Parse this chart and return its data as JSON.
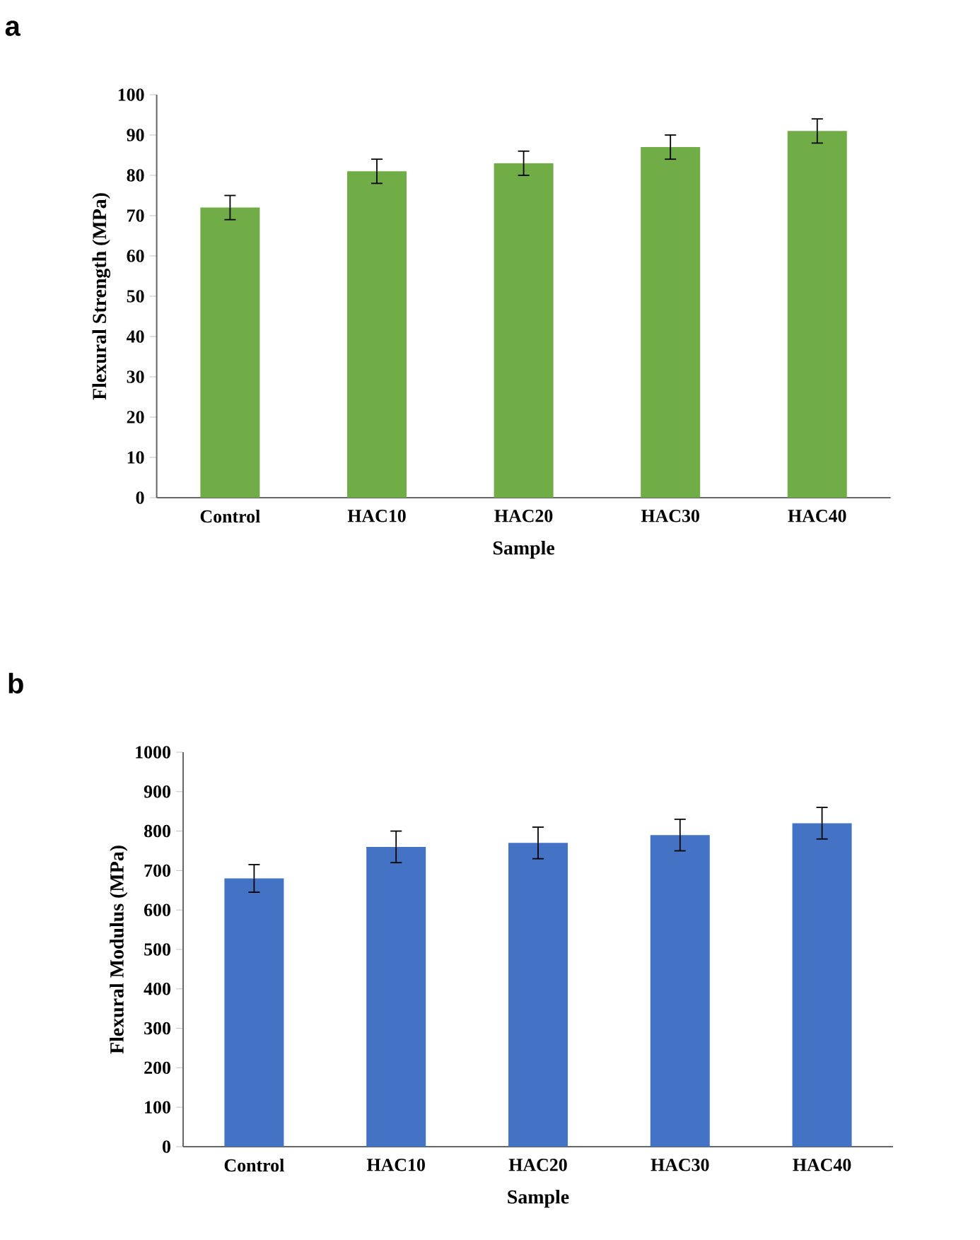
{
  "chart_data": [
    {
      "type": "bar",
      "title": "a",
      "xlabel": "Sample",
      "ylabel": "Flexural Strength (MPa)",
      "categories": [
        "Control",
        "HAC10",
        "HAC20",
        "HAC30",
        "HAC40"
      ],
      "values": [
        72,
        81,
        83,
        87,
        91
      ],
      "errors": [
        3,
        3,
        3,
        3,
        3
      ],
      "color": "#70ad47",
      "ylim": [
        0,
        100
      ],
      "yticks": [
        0,
        10,
        20,
        30,
        40,
        50,
        60,
        70,
        80,
        90,
        100
      ]
    },
    {
      "type": "bar",
      "title": "b",
      "xlabel": "Sample",
      "ylabel": "Flexural Modulus (MPa)",
      "categories": [
        "Control",
        "HAC10",
        "HAC20",
        "HAC30",
        "HAC40"
      ],
      "values": [
        680,
        760,
        770,
        790,
        820
      ],
      "errors": [
        35,
        40,
        40,
        40,
        40
      ],
      "color": "#4472c4",
      "ylim": [
        0,
        1000
      ],
      "yticks": [
        0,
        100,
        200,
        300,
        400,
        500,
        600,
        700,
        800,
        900,
        1000
      ]
    }
  ]
}
